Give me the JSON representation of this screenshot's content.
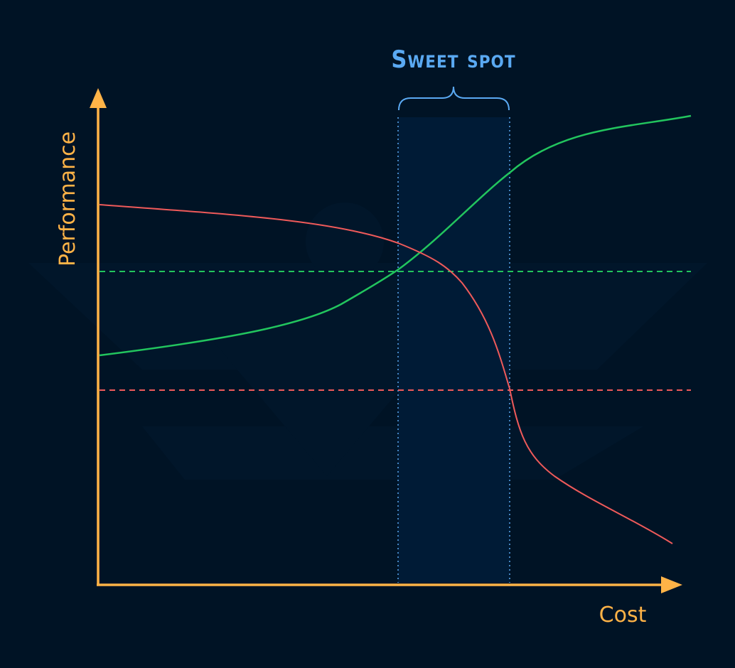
{
  "chart_data": {
    "type": "line",
    "title": "",
    "xlabel": "Cost",
    "ylabel": "Performance",
    "annotations": [
      {
        "label": "Sweet spot"
      }
    ],
    "grid": false,
    "legend": "none",
    "series": [
      {
        "color": "#22c55e",
        "style": "solid"
      },
      {
        "color": "#ef5a5a",
        "style": "solid"
      },
      {
        "color": "#22c55e",
        "style": "dashed"
      },
      {
        "color": "#ef5a5a",
        "style": "dashed"
      }
    ]
  },
  "colors": {
    "background": "#001325",
    "axis": "#ffb347",
    "highlight_band": "#001b36",
    "annotation": "#5aa9f2",
    "green": "#22c55e",
    "red": "#ef5a5a"
  }
}
